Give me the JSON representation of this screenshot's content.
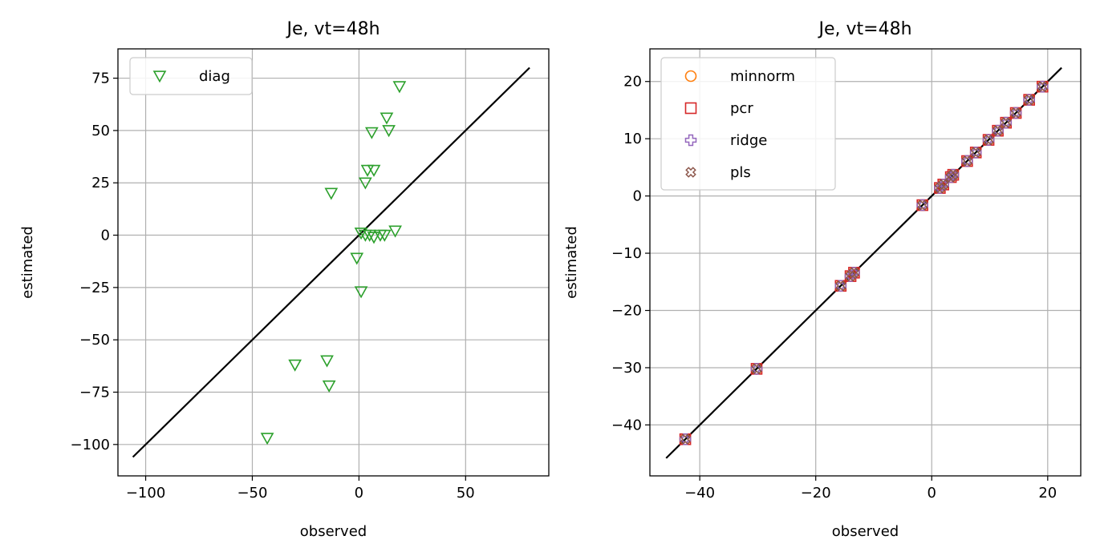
{
  "chart_data": [
    {
      "type": "scatter",
      "title": "Je, vt=48h",
      "xlabel": "observed",
      "ylabel": "estimated",
      "xlim": [
        -113,
        89
      ],
      "ylim": [
        -115,
        89
      ],
      "xticks": [
        -100,
        -50,
        0,
        50
      ],
      "yticks": [
        -100,
        -75,
        -50,
        -25,
        0,
        25,
        50,
        75
      ],
      "xtick_labels": [
        "−100",
        "−50",
        "0",
        "50"
      ],
      "ytick_labels": [
        "−100",
        "−75",
        "−50",
        "−25",
        "0",
        "25",
        "50",
        "75"
      ],
      "grid": true,
      "legend_position": "top-left",
      "reference_line": {
        "x": [
          -106,
          80
        ],
        "y": [
          -106,
          80
        ],
        "color": "#000000"
      },
      "series": [
        {
          "name": "diag",
          "marker": "triangle-down",
          "color": "#2ca02c",
          "points": [
            [
              19,
              71
            ],
            [
              13,
              56
            ],
            [
              14,
              50
            ],
            [
              6,
              49
            ],
            [
              4,
              31
            ],
            [
              7,
              31
            ],
            [
              3,
              25
            ],
            [
              -13,
              20
            ],
            [
              1,
              1
            ],
            [
              3,
              0
            ],
            [
              5,
              0
            ],
            [
              7,
              -1
            ],
            [
              10,
              0
            ],
            [
              12,
              0
            ],
            [
              17,
              2
            ],
            [
              -1,
              -11
            ],
            [
              1,
              -27
            ],
            [
              -15,
              -60
            ],
            [
              -30,
              -62
            ],
            [
              -14,
              -72
            ],
            [
              -43,
              -97
            ]
          ]
        }
      ]
    },
    {
      "type": "scatter",
      "title": "Je, vt=48h",
      "xlabel": "observed",
      "ylabel": "estimated",
      "xlim": [
        -48.6,
        25.7
      ],
      "ylim": [
        -48.9,
        25.7
      ],
      "xticks": [
        -40,
        -20,
        0,
        20
      ],
      "yticks": [
        -40,
        -30,
        -20,
        -10,
        0,
        10,
        20
      ],
      "xtick_labels": [
        "−40",
        "−20",
        "0",
        "20"
      ],
      "ytick_labels": [
        "−40",
        "−30",
        "−20",
        "−10",
        "0",
        "10",
        "20"
      ],
      "grid": true,
      "legend_position": "top-left",
      "reference_line": {
        "x": [
          -45.8,
          22.4
        ],
        "y": [
          -45.8,
          22.4
        ],
        "color": "#000000"
      },
      "shared_points": [
        [
          -42.5,
          -42.5
        ],
        [
          -30.2,
          -30.2
        ],
        [
          -15.7,
          -15.7
        ],
        [
          -14.0,
          -14.0
        ],
        [
          -13.4,
          -13.4
        ],
        [
          -1.6,
          -1.6
        ],
        [
          1.4,
          1.4
        ],
        [
          2.0,
          2.0
        ],
        [
          3.3,
          3.3
        ],
        [
          3.7,
          3.7
        ],
        [
          6.1,
          6.1
        ],
        [
          7.6,
          7.6
        ],
        [
          9.8,
          9.8
        ],
        [
          11.4,
          11.4
        ],
        [
          12.8,
          12.8
        ],
        [
          14.5,
          14.5
        ],
        [
          16.8,
          16.8
        ],
        [
          19.1,
          19.1
        ]
      ],
      "series": [
        {
          "name": "minnorm",
          "marker": "circle",
          "color": "#ff7f0e"
        },
        {
          "name": "pcr",
          "marker": "square",
          "color": "#d62728"
        },
        {
          "name": "ridge",
          "marker": "plus",
          "color": "#9467bd"
        },
        {
          "name": "pls",
          "marker": "x",
          "color": "#8c564b"
        }
      ]
    }
  ]
}
